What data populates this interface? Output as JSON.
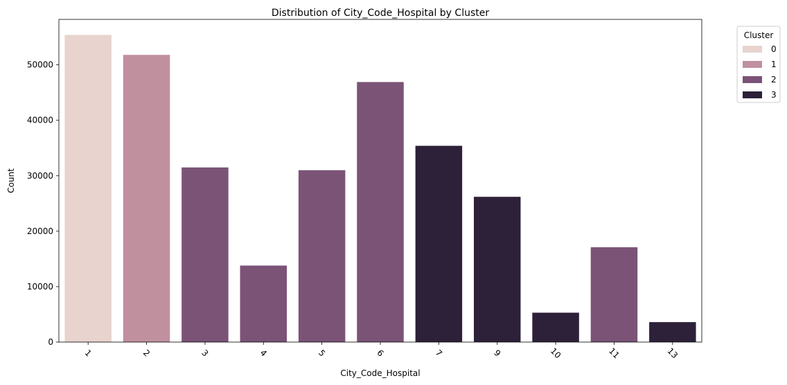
{
  "chart_data": {
    "type": "bar",
    "title": "Distribution of City_Code_Hospital by Cluster",
    "xlabel": "City_Code_Hospital",
    "ylabel": "Count",
    "categories": [
      "1",
      "2",
      "3",
      "4",
      "5",
      "6",
      "7",
      "9",
      "10",
      "11",
      "13"
    ],
    "values": [
      55400,
      51800,
      31500,
      13800,
      31000,
      46900,
      35400,
      26200,
      5300,
      17100,
      3600
    ],
    "bar_clusters": [
      "0",
      "1",
      "2",
      "2",
      "2",
      "2",
      "3",
      "3",
      "3",
      "2",
      "3"
    ],
    "ylim": [
      0,
      58200
    ],
    "yticks": [
      0,
      10000,
      20000,
      30000,
      40000,
      50000
    ],
    "grid": false,
    "legend": {
      "title": "Cluster",
      "placement": "outside top-right",
      "entries": [
        {
          "label": "0",
          "color": "#e8d3ce"
        },
        {
          "label": "1",
          "color": "#c0909f"
        },
        {
          "label": "2",
          "color": "#7b5377"
        },
        {
          "label": "3",
          "color": "#2d2139"
        }
      ]
    }
  }
}
